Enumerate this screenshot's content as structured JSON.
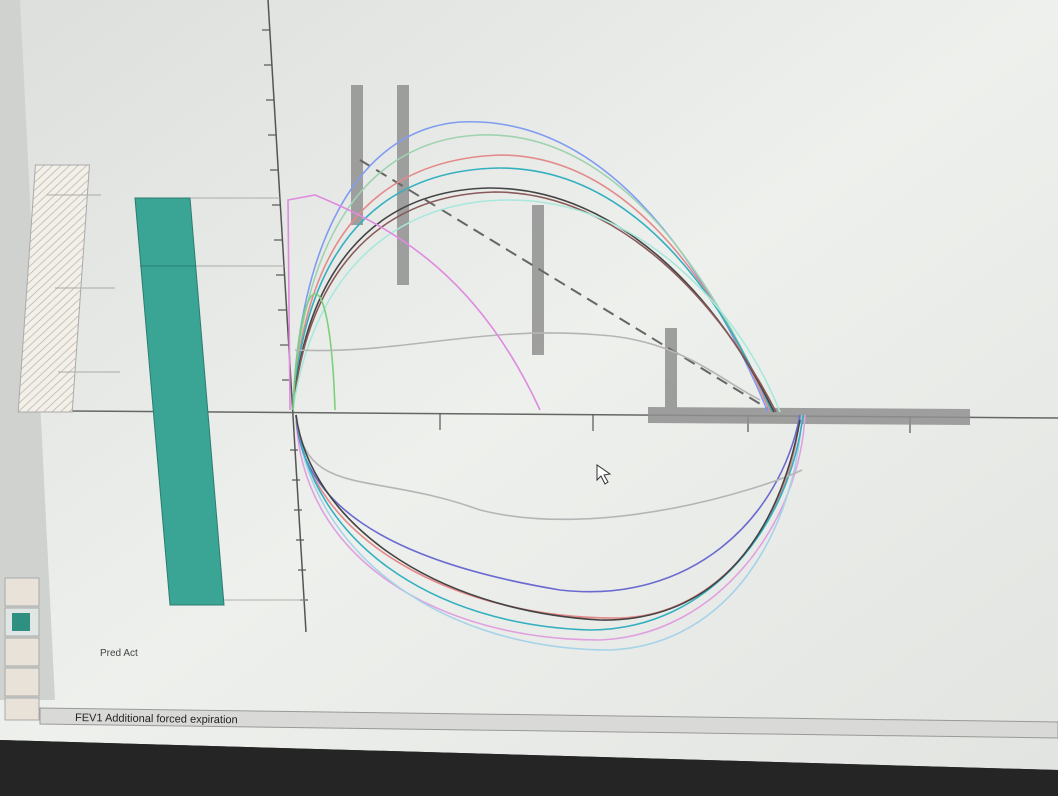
{
  "legend_label": "Pred Act",
  "status_bar": "FEV1  Additional forced expiration"
}
